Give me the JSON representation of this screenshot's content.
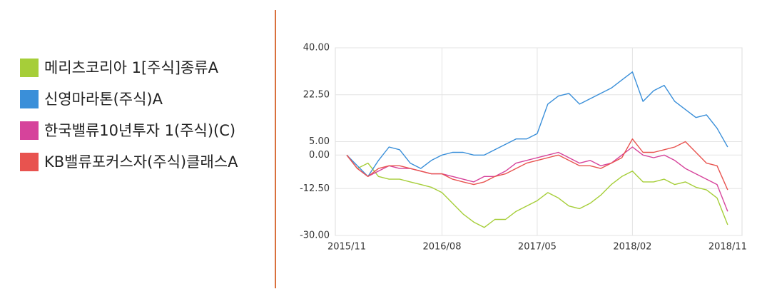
{
  "chart_data": {
    "type": "line",
    "categories": [
      "2015/11",
      null,
      null,
      null,
      null,
      null,
      null,
      null,
      null,
      "2016/08",
      null,
      null,
      null,
      null,
      null,
      null,
      null,
      null,
      "2017/05",
      null,
      null,
      null,
      null,
      null,
      null,
      null,
      null,
      "2018/02",
      null,
      null,
      null,
      null,
      null,
      null,
      null,
      null,
      "2018/11"
    ],
    "series": [
      {
        "name": "메리츠코리아 1[주식]종류A",
        "color": "#a6ce39",
        "values": [
          0,
          -5,
          -3,
          -8,
          -9,
          -9,
          -10,
          -11,
          -12,
          -14,
          -18,
          -22,
          -25,
          -27,
          -24,
          -24,
          -21,
          -19,
          -17,
          -14,
          -16,
          -19,
          -20,
          -18,
          -15,
          -11,
          -8,
          -6,
          -10,
          -10,
          -9,
          -11,
          -10,
          -12,
          -13,
          -16,
          -26
        ]
      },
      {
        "name": "신영마라톤(주식)A",
        "color": "#3a8fd9",
        "values": [
          0,
          -4,
          -8,
          -2,
          3,
          2,
          -3,
          -5,
          -2,
          0,
          1,
          1,
          0,
          0,
          2,
          4,
          6,
          6,
          8,
          19,
          22,
          23,
          19,
          21,
          23,
          25,
          28,
          31,
          20,
          24,
          26,
          20,
          17,
          14,
          15,
          10,
          3
        ]
      },
      {
        "name": "한국밸류10년투자 1(주식)(C)",
        "color": "#d6439b",
        "values": [
          0,
          -5,
          -8,
          -6,
          -4,
          -5,
          -5,
          -6,
          -7,
          -7,
          -8,
          -9,
          -10,
          -8,
          -8,
          -6,
          -3,
          -2,
          -1,
          0,
          1,
          -1,
          -3,
          -2,
          -4,
          -3,
          0,
          3,
          0,
          -1,
          0,
          -2,
          -5,
          -7,
          -9,
          -11,
          -21
        ]
      },
      {
        "name": "KB밸류포커스자(주식)클래스A",
        "color": "#e8534f",
        "values": [
          0,
          -5,
          -8,
          -5,
          -4,
          -4,
          -5,
          -6,
          -7,
          -7,
          -9,
          -10,
          -11,
          -10,
          -8,
          -7,
          -5,
          -3,
          -2,
          -1,
          0,
          -2,
          -4,
          -4,
          -5,
          -3,
          -1,
          6,
          1,
          1,
          2,
          3,
          5,
          1,
          -3,
          -4,
          -13
        ]
      }
    ],
    "ylim": [
      -30,
      40
    ],
    "yticks": [
      {
        "value": 40,
        "label": "40.00"
      },
      {
        "value": 22.5,
        "label": "22.50"
      },
      {
        "value": 5,
        "label": "5.00"
      },
      {
        "value": 0,
        "label": "0.00"
      },
      {
        "value": -12.5,
        "label": "-12.50"
      },
      {
        "value": -30,
        "label": "-30.00"
      }
    ],
    "grid": true
  }
}
